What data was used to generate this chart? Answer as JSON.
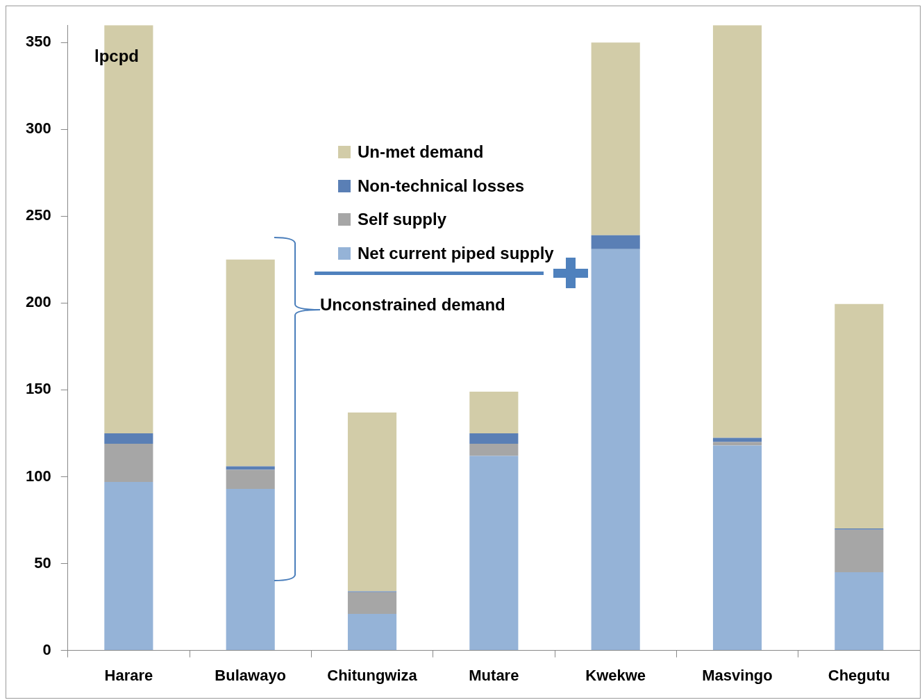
{
  "chart_data": {
    "type": "bar",
    "stacked": true,
    "ylabel": "lpcpd",
    "categories": [
      "Harare",
      "Bulawayo",
      "Chitungwiza",
      "Mutare",
      "Kwekwe",
      "Masvingo",
      "Chegutu"
    ],
    "series": [
      {
        "name": "Net current piped supply",
        "color": "#95b3d7",
        "values": [
          97,
          93,
          21,
          112,
          231,
          118,
          45
        ]
      },
      {
        "name": "Self supply",
        "color": "#a6a6a6",
        "values": [
          22,
          11,
          12.5,
          7,
          0,
          2,
          24.5
        ]
      },
      {
        "name": "Non-technical losses",
        "color": "#5a7fb5",
        "values": [
          6,
          2,
          0.5,
          6,
          8,
          2.4,
          0.7
        ]
      },
      {
        "name": "Un-met demand",
        "color": "#d2cca8",
        "values": [
          235,
          119,
          103,
          24,
          111,
          237.6,
          129.3
        ]
      }
    ],
    "ylim": [
      0,
      360
    ],
    "yticks": [
      0,
      50,
      100,
      150,
      200,
      250,
      300,
      350
    ],
    "grid": false,
    "legend": "top center",
    "annotations": [
      "Unconstrained demand"
    ]
  }
}
